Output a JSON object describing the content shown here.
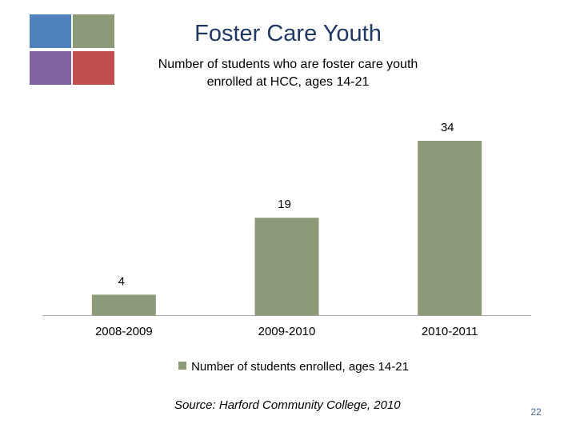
{
  "slide": {
    "title": "Foster Care Youth",
    "source": "Source: Harford Community College, 2010",
    "page_number": "22",
    "logo_colors": [
      "#4f81bd",
      "#8c9a78",
      "#8064a2",
      "#c0504d"
    ]
  },
  "chart_data": {
    "type": "bar",
    "title": "Number of students who are foster care youth enrolled at HCC, ages 14-21",
    "title_lines": [
      "Number of students who are foster care youth",
      "enrolled at HCC, ages 14-21"
    ],
    "categories": [
      "2008-2009",
      "2009-2010",
      "2010-2011"
    ],
    "series": [
      {
        "name": "Number of students enrolled, ages 14-21",
        "values": [
          4,
          19,
          34
        ],
        "color": "#8c9a78"
      }
    ],
    "data_labels": [
      "4",
      "19",
      "34"
    ],
    "ylim": [
      0,
      34
    ],
    "grid": false,
    "legend_position": "bottom"
  }
}
